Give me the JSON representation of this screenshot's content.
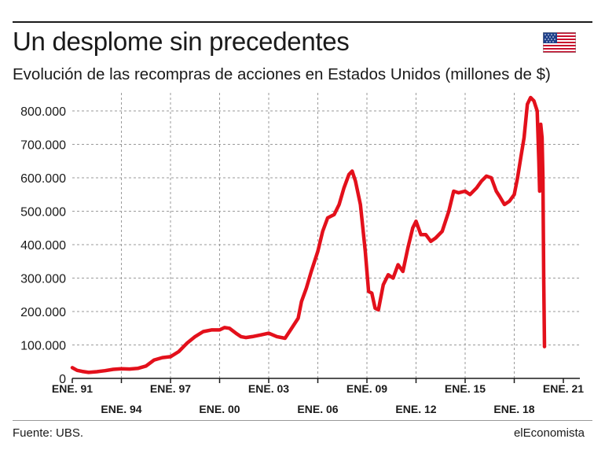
{
  "header": {
    "title": "Un desplome sin precedentes",
    "subtitle": "Evolución de las recompras de acciones en Estados Unidos (millones de $)"
  },
  "footer": {
    "source": "Fuente: UBS.",
    "brand": "elEconomista"
  },
  "icons": {
    "flag": "us-flag-icon"
  },
  "colors": {
    "line": "#e3101b",
    "grid": "#9a9a9a",
    "axis": "#1a1a1a"
  },
  "chart_data": {
    "type": "line",
    "title": "Un desplome sin precedentes",
    "subtitle": "Evolución de las recompras de acciones en Estados Unidos (millones de $)",
    "ylim": [
      0,
      800000
    ],
    "y_ticks": [
      0,
      100000,
      200000,
      300000,
      400000,
      500000,
      600000,
      700000,
      800000
    ],
    "y_tick_labels": [
      "0",
      "100.000",
      "200.000",
      "300.000",
      "400.000",
      "500.000",
      "600.000",
      "700.000",
      "800.000"
    ],
    "x_ticks": [
      1991,
      1994,
      1997,
      2000,
      2003,
      2006,
      2009,
      2012,
      2015,
      2018,
      2021
    ],
    "x_tick_labels": [
      "ENE. 91",
      "ENE. 94",
      "ENE. 97",
      "ENE. 00",
      "ENE. 03",
      "ENE. 06",
      "ENE. 09",
      "ENE. 12",
      "ENE. 15",
      "ENE. 18",
      "ENE. 21"
    ],
    "grid": true,
    "series": [
      {
        "x": [
          1991.0,
          1991.3,
          1991.6,
          1992.0,
          1992.5,
          1993.0,
          1993.5,
          1994.0,
          1994.5,
          1995.0,
          1995.5,
          1996.0,
          1996.5,
          1997.0,
          1997.5,
          1998.0,
          1998.5,
          1999.0,
          1999.5,
          2000.0,
          2000.3,
          2000.6,
          2001.0,
          2001.3,
          2001.6,
          2002.0,
          2002.5,
          2003.0,
          2003.5,
          2004.0,
          2004.4,
          2004.8,
          2005.0,
          2005.3,
          2005.6,
          2006.0,
          2006.3,
          2006.6,
          2007.0,
          2007.3,
          2007.6,
          2007.9,
          2008.1,
          2008.3,
          2008.6,
          2008.9,
          2009.1,
          2009.3,
          2009.5,
          2009.7,
          2010.0,
          2010.3,
          2010.6,
          2010.9,
          2011.2,
          2011.5,
          2011.8,
          2012.0,
          2012.3,
          2012.6,
          2012.9,
          2013.2,
          2013.6,
          2014.0,
          2014.3,
          2014.6,
          2015.0,
          2015.3,
          2015.7,
          2016.0,
          2016.3,
          2016.6,
          2016.9,
          2017.1,
          2017.4,
          2017.7,
          2018.0,
          2018.2,
          2018.4,
          2018.6,
          2018.8,
          2019.0,
          2019.2,
          2019.4,
          2019.5,
          2019.55,
          2019.62,
          2019.7,
          2019.75,
          2019.8,
          2019.85
        ],
        "y": [
          32000,
          24000,
          21000,
          18000,
          20000,
          23000,
          27000,
          29000,
          28000,
          30000,
          37000,
          55000,
          62000,
          65000,
          80000,
          105000,
          125000,
          140000,
          145000,
          145000,
          152000,
          150000,
          135000,
          125000,
          122000,
          125000,
          130000,
          135000,
          125000,
          120000,
          150000,
          180000,
          230000,
          270000,
          320000,
          380000,
          440000,
          480000,
          490000,
          520000,
          570000,
          610000,
          620000,
          590000,
          520000,
          380000,
          260000,
          255000,
          210000,
          205000,
          280000,
          310000,
          300000,
          340000,
          320000,
          390000,
          450000,
          470000,
          430000,
          430000,
          410000,
          420000,
          440000,
          500000,
          560000,
          555000,
          560000,
          550000,
          570000,
          590000,
          605000,
          600000,
          560000,
          545000,
          520000,
          530000,
          550000,
          600000,
          660000,
          720000,
          820000,
          840000,
          830000,
          800000,
          650000,
          560000,
          760000,
          720000,
          600000,
          300000,
          95000
        ]
      }
    ]
  }
}
